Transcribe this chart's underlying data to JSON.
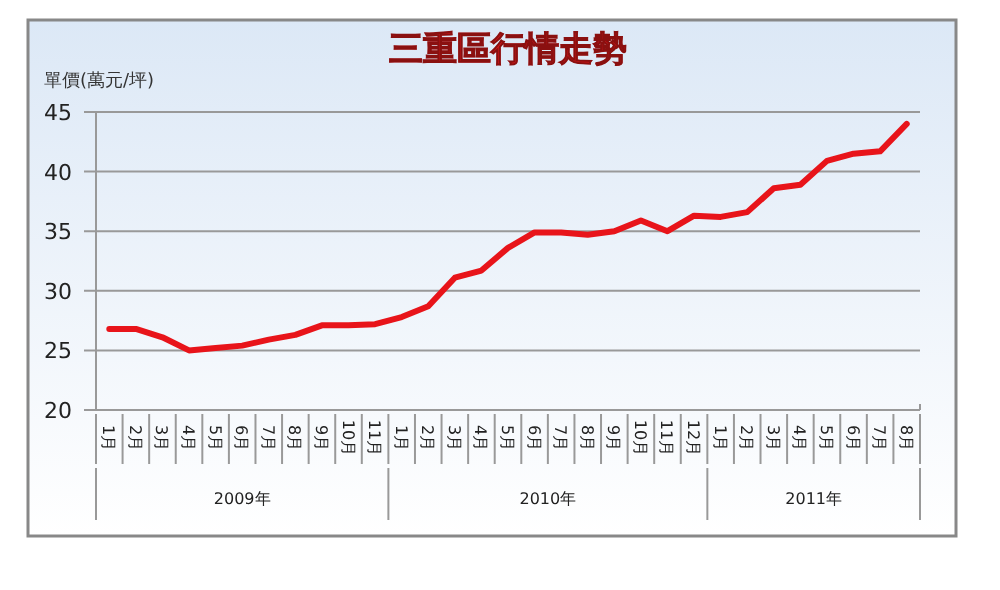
{
  "chart_data": {
    "type": "line",
    "title": "三重區行情走勢",
    "ylabel": "單價(萬元/坪)",
    "categories": [
      "1月",
      "2月",
      "3月",
      "4月",
      "5月",
      "6月",
      "7月",
      "8月",
      "9月",
      "10月",
      "11月",
      "1月",
      "2月",
      "3月",
      "4月",
      "5月",
      "6月",
      "7月",
      "8月",
      "9月",
      "10月",
      "11月",
      "12月",
      "1月",
      "2月",
      "3月",
      "4月",
      "5月",
      "6月",
      "7月",
      "8月"
    ],
    "series": [
      {
        "color": "#e8141a",
        "values": [
          26.8,
          26.8,
          26.1,
          25.0,
          25.2,
          25.4,
          25.9,
          26.3,
          27.1,
          27.1,
          27.2,
          27.8,
          28.7,
          31.1,
          31.7,
          33.6,
          34.9,
          34.9,
          34.7,
          35.0,
          35.9,
          35.0,
          36.3,
          36.2,
          36.6,
          38.6,
          38.9,
          40.9,
          41.5,
          41.7,
          44.0
        ]
      }
    ],
    "ylim": [
      20,
      45
    ],
    "yticks": [
      20,
      25,
      30,
      35,
      40,
      45
    ],
    "grid": "y",
    "marker": "none",
    "line_style": "solid",
    "annotations": [
      "2009年",
      "2010年",
      "2011年"
    ]
  }
}
